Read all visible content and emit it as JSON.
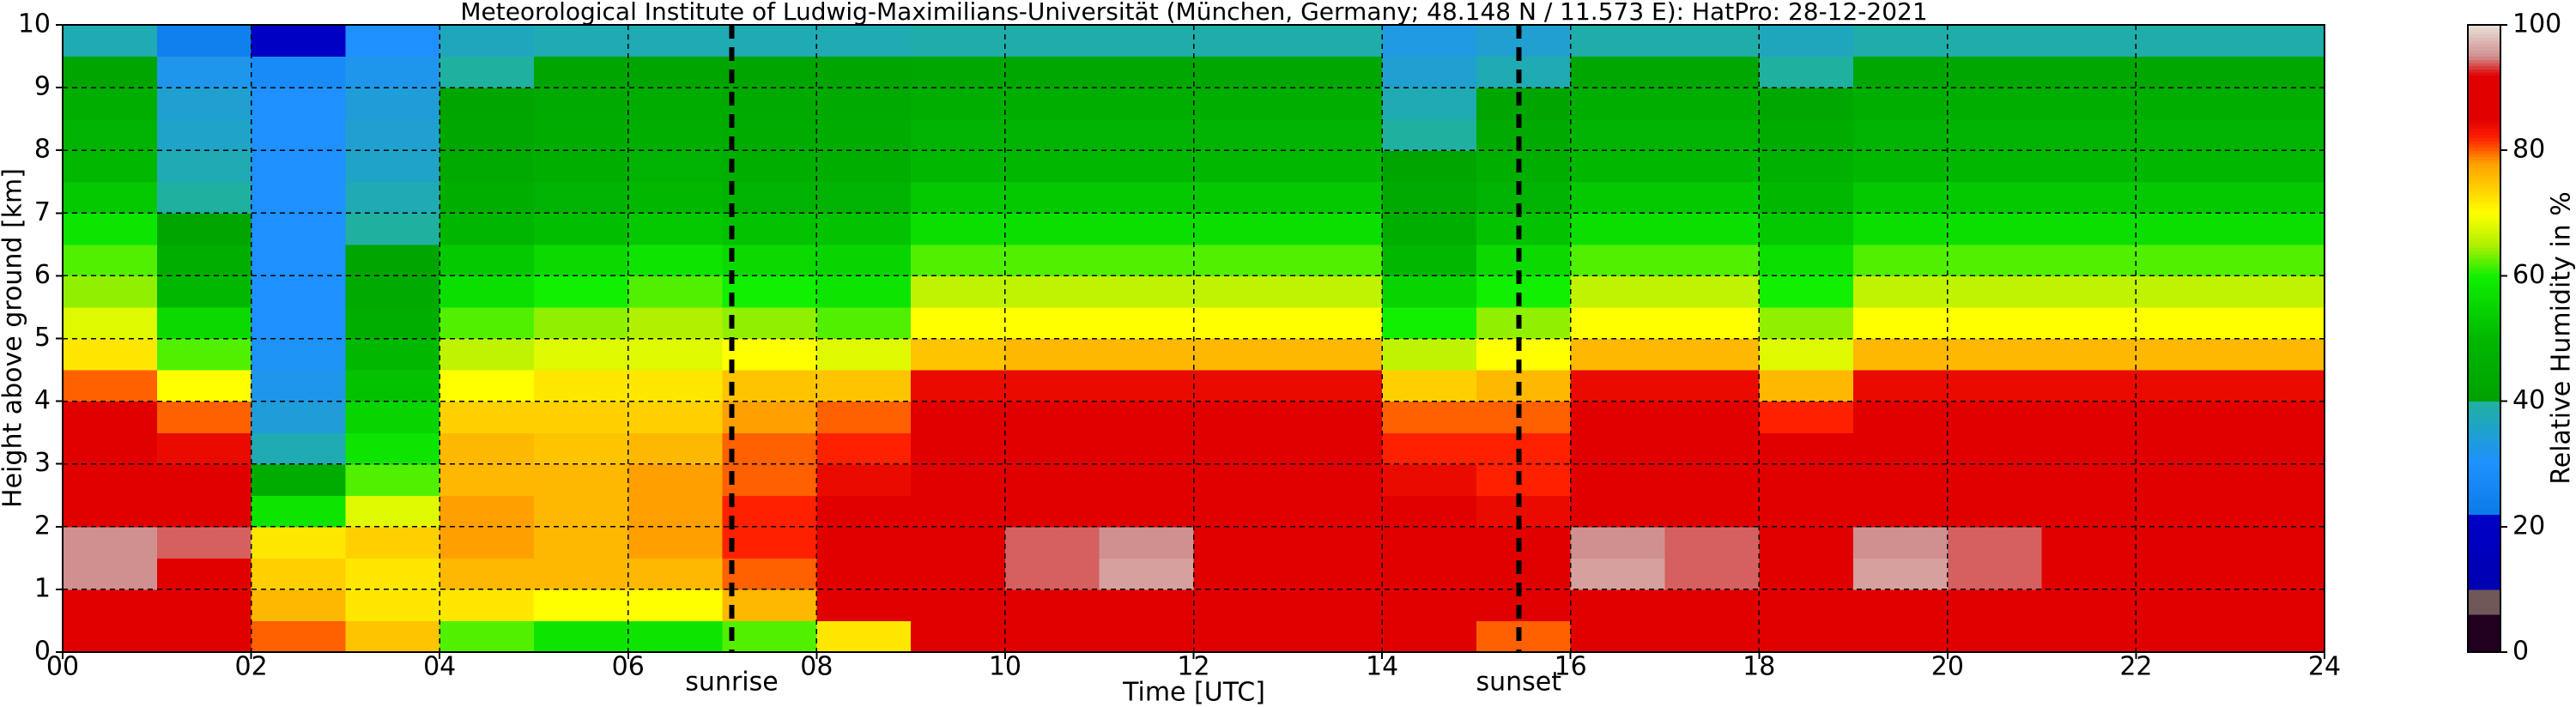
{
  "chart_data": {
    "type": "heatmap",
    "title": "Meteorological Institute of Ludwig-Maximilians-Universität (München, Germany; 48.148 N / 11.573 E):    HatPro: 28-12-2021",
    "xlabel": "Time [UTC]",
    "ylabel": "Height above ground [km]",
    "xlim": [
      0,
      24
    ],
    "ylim": [
      0,
      10
    ],
    "xticks": [
      {
        "value": 0,
        "label": "00"
      },
      {
        "value": 2,
        "label": "02"
      },
      {
        "value": 4,
        "label": "04"
      },
      {
        "value": 6,
        "label": "06"
      },
      {
        "value": 8,
        "label": "08"
      },
      {
        "value": 10,
        "label": "10"
      },
      {
        "value": 12,
        "label": "12"
      },
      {
        "value": 14,
        "label": "14"
      },
      {
        "value": 16,
        "label": "16"
      },
      {
        "value": 18,
        "label": "18"
      },
      {
        "value": 20,
        "label": "20"
      },
      {
        "value": 22,
        "label": "22"
      },
      {
        "value": 24,
        "label": "24"
      }
    ],
    "yticks": [
      0,
      1,
      2,
      3,
      4,
      5,
      6,
      7,
      8,
      9,
      10
    ],
    "grid": true,
    "x_bins": [
      0,
      1,
      2,
      3,
      4,
      5,
      6,
      7,
      8,
      9,
      10,
      11,
      12,
      13,
      14,
      15,
      16,
      17,
      18,
      19,
      20,
      21,
      22,
      23,
      24
    ],
    "y_bins": [
      0,
      0.5,
      1,
      1.5,
      2,
      2.5,
      3,
      3.5,
      4,
      4.5,
      5,
      5.5,
      6,
      6.5,
      7,
      7.5,
      8,
      8.5,
      9,
      9.5,
      10
    ],
    "z": [
      [
        85,
        85,
        80,
        75,
        62,
        58,
        58,
        62,
        72,
        86,
        88,
        88,
        88,
        88,
        86,
        80,
        88,
        88,
        88,
        88,
        88,
        88,
        86,
        88
      ],
      [
        88,
        88,
        76,
        72,
        72,
        70,
        70,
        76,
        86,
        88,
        90,
        92,
        88,
        88,
        88,
        86,
        92,
        88,
        88,
        92,
        88,
        88,
        88,
        88
      ],
      [
        95,
        92,
        74,
        72,
        76,
        76,
        76,
        80,
        86,
        90,
        94,
        96,
        90,
        90,
        92,
        88,
        96,
        94,
        92,
        96,
        94,
        92,
        90,
        92
      ],
      [
        95,
        94,
        72,
        74,
        78,
        76,
        78,
        82,
        86,
        90,
        94,
        95,
        90,
        90,
        92,
        88,
        95,
        94,
        92,
        95,
        94,
        92,
        90,
        92
      ],
      [
        88,
        88,
        58,
        68,
        78,
        76,
        78,
        82,
        86,
        88,
        88,
        88,
        88,
        88,
        86,
        84,
        88,
        88,
        88,
        88,
        88,
        88,
        88,
        88
      ],
      [
        88,
        86,
        45,
        62,
        76,
        76,
        78,
        80,
        84,
        88,
        88,
        88,
        88,
        88,
        84,
        82,
        88,
        88,
        88,
        88,
        88,
        88,
        88,
        88
      ],
      [
        88,
        84,
        38,
        58,
        76,
        75,
        76,
        80,
        82,
        88,
        88,
        88,
        88,
        88,
        82,
        82,
        88,
        88,
        86,
        88,
        88,
        88,
        88,
        88
      ],
      [
        88,
        80,
        34,
        55,
        74,
        74,
        74,
        78,
        80,
        86,
        86,
        86,
        86,
        86,
        80,
        80,
        86,
        86,
        82,
        86,
        86,
        86,
        86,
        86
      ],
      [
        80,
        70,
        32,
        52,
        70,
        72,
        72,
        75,
        75,
        84,
        84,
        84,
        84,
        84,
        74,
        76,
        84,
        84,
        76,
        84,
        84,
        84,
        84,
        84
      ],
      [
        72,
        62,
        31,
        50,
        66,
        68,
        68,
        70,
        68,
        75,
        76,
        76,
        76,
        76,
        66,
        70,
        76,
        76,
        68,
        76,
        76,
        76,
        76,
        76
      ],
      [
        68,
        56,
        30,
        46,
        62,
        64,
        65,
        64,
        62,
        70,
        70,
        70,
        70,
        70,
        60,
        64,
        70,
        70,
        64,
        70,
        70,
        70,
        70,
        70
      ],
      [
        64,
        50,
        30,
        44,
        57,
        60,
        62,
        60,
        58,
        66,
        66,
        66,
        66,
        66,
        55,
        60,
        66,
        66,
        60,
        66,
        66,
        66,
        66,
        66
      ],
      [
        62,
        46,
        30,
        42,
        53,
        56,
        58,
        56,
        55,
        62,
        62,
        62,
        62,
        62,
        50,
        56,
        62,
        62,
        57,
        62,
        62,
        62,
        62,
        62
      ],
      [
        58,
        42,
        30,
        40,
        49,
        51,
        53,
        52,
        52,
        57,
        57,
        57,
        57,
        57,
        46,
        52,
        57,
        57,
        53,
        57,
        57,
        57,
        57,
        57
      ],
      [
        53,
        40,
        30,
        38,
        46,
        48,
        50,
        48,
        48,
        53,
        53,
        53,
        53,
        53,
        44,
        48,
        53,
        53,
        50,
        53,
        53,
        53,
        53,
        53
      ],
      [
        50,
        38,
        30,
        36,
        44,
        46,
        48,
        46,
        46,
        50,
        50,
        50,
        50,
        50,
        42,
        46,
        50,
        50,
        47,
        50,
        50,
        50,
        50,
        50
      ],
      [
        48,
        36,
        30,
        35,
        43,
        45,
        46,
        45,
        45,
        48,
        48,
        48,
        48,
        48,
        40,
        44,
        48,
        48,
        45,
        48,
        48,
        48,
        48,
        48
      ],
      [
        46,
        35,
        30,
        34,
        42,
        44,
        45,
        44,
        44,
        46,
        46,
        46,
        46,
        46,
        38,
        42,
        46,
        46,
        43,
        46,
        46,
        46,
        46,
        46
      ],
      [
        42,
        32,
        28,
        32,
        40,
        42,
        42,
        42,
        42,
        43,
        43,
        43,
        43,
        43,
        35,
        38,
        43,
        43,
        40,
        43,
        43,
        43,
        43,
        43
      ],
      [
        38,
        24,
        20,
        30,
        37,
        38,
        38,
        38,
        38,
        39,
        39,
        39,
        39,
        39,
        33,
        35,
        39,
        39,
        37,
        39,
        39,
        39,
        39,
        39
      ]
    ],
    "colormap": [
      [
        0,
        "#200020"
      ],
      [
        6,
        "#200020"
      ],
      [
        6,
        "#705858"
      ],
      [
        10,
        "#705858"
      ],
      [
        10,
        "#0000b0"
      ],
      [
        22,
        "#0000c8"
      ],
      [
        22,
        "#0a7ae8"
      ],
      [
        30,
        "#1e90ff"
      ],
      [
        40,
        "#20b0a0"
      ],
      [
        40,
        "#00a000"
      ],
      [
        50,
        "#00b800"
      ],
      [
        60,
        "#10f000"
      ],
      [
        65,
        "#b0f000"
      ],
      [
        70,
        "#ffff00"
      ],
      [
        78,
        "#ffa000"
      ],
      [
        82,
        "#ff2000"
      ],
      [
        85,
        "#e00000"
      ],
      [
        92,
        "#e00000"
      ],
      [
        95,
        "#d09090"
      ],
      [
        100,
        "#e8e0d8"
      ]
    ],
    "colorbar": {
      "label": "Relative Humidity in %",
      "lim": [
        0,
        100
      ],
      "ticks": [
        0,
        20,
        40,
        60,
        80,
        100
      ]
    },
    "vlines": [
      {
        "x": 7.1,
        "label": "sunrise"
      },
      {
        "x": 15.45,
        "label": "sunset"
      }
    ]
  }
}
